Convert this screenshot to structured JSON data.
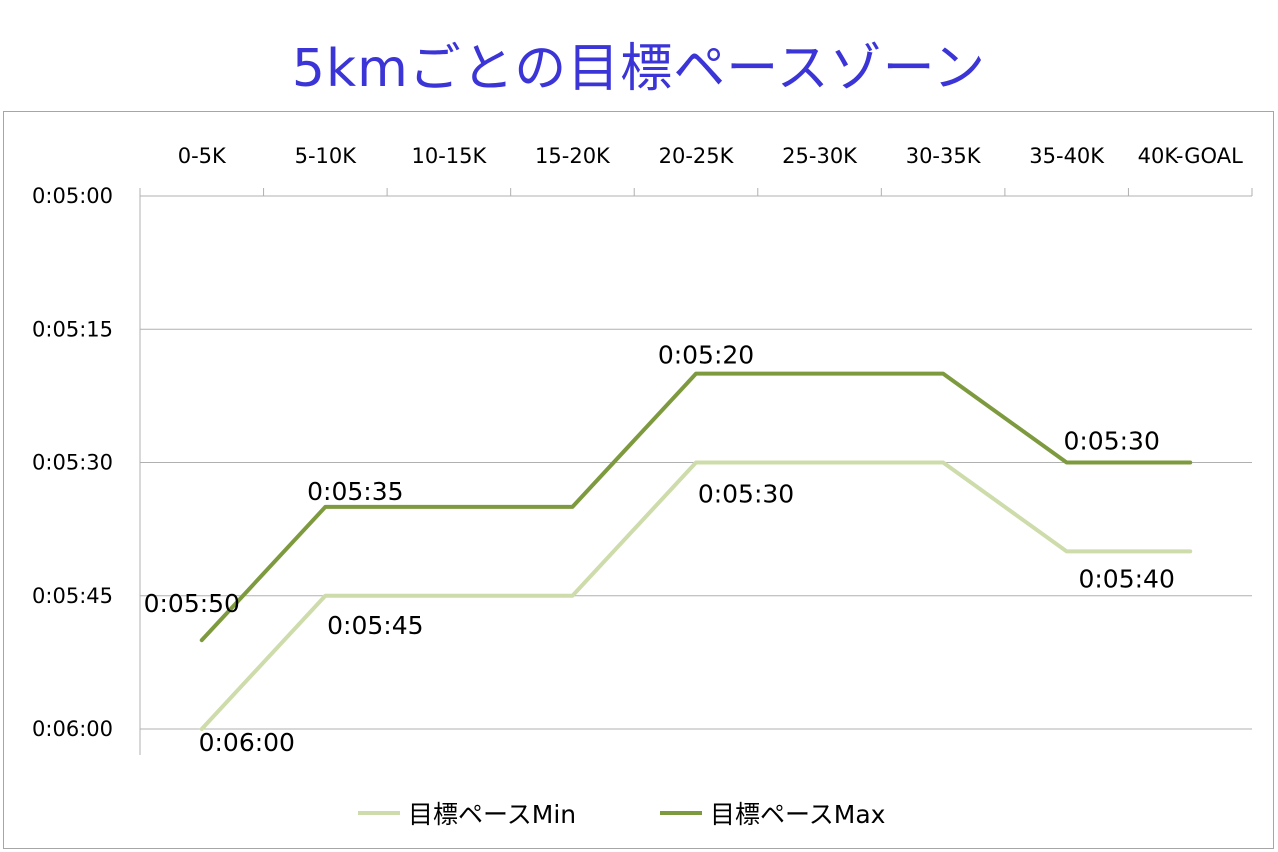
{
  "title": "5kmごとの目標ペースゾーン",
  "colors": {
    "title": "#3b34d6",
    "min": "#cddcaa",
    "max": "#7e9a3e",
    "grid": "#b0b0b0"
  },
  "chart_data": {
    "type": "line",
    "categories": [
      "0-5K",
      "5-10K",
      "10-15K",
      "15-20K",
      "20-25K",
      "25-30K",
      "30-35K",
      "35-40K",
      "40K-GOAL"
    ],
    "y_ticks": [
      "0:05:00",
      "0:05:15",
      "0:05:30",
      "0:05:45",
      "0:06:00"
    ],
    "y_range_seconds": [
      300,
      360
    ],
    "y_reversed": true,
    "x_axis_position": "top",
    "grid": true,
    "legend_position": "bottom",
    "series": [
      {
        "name": "目標ペースMin",
        "values": [
          "0:06:00",
          "0:05:45",
          "0:05:45",
          "0:05:45",
          "0:05:30",
          "0:05:30",
          "0:05:30",
          "0:05:40",
          "0:05:40"
        ],
        "seconds": [
          360,
          345,
          345,
          345,
          330,
          330,
          330,
          340,
          340
        ],
        "labels": [
          {
            "index": 0,
            "text": "0:06:00"
          },
          {
            "index": 1,
            "text": "0:05:45"
          },
          {
            "index": 4,
            "text": "0:05:30"
          },
          {
            "index": 7,
            "text": "0:05:40"
          }
        ]
      },
      {
        "name": "目標ペースMax",
        "values": [
          "0:05:50",
          "0:05:35",
          "0:05:35",
          "0:05:35",
          "0:05:20",
          "0:05:20",
          "0:05:20",
          "0:05:30",
          "0:05:30"
        ],
        "seconds": [
          350,
          335,
          335,
          335,
          320,
          320,
          320,
          330,
          330
        ],
        "labels": [
          {
            "index": 0,
            "text": "0:05:50"
          },
          {
            "index": 1,
            "text": "0:05:35"
          },
          {
            "index": 4,
            "text": "0:05:20"
          },
          {
            "index": 7,
            "text": "0:05:30"
          }
        ]
      }
    ]
  }
}
